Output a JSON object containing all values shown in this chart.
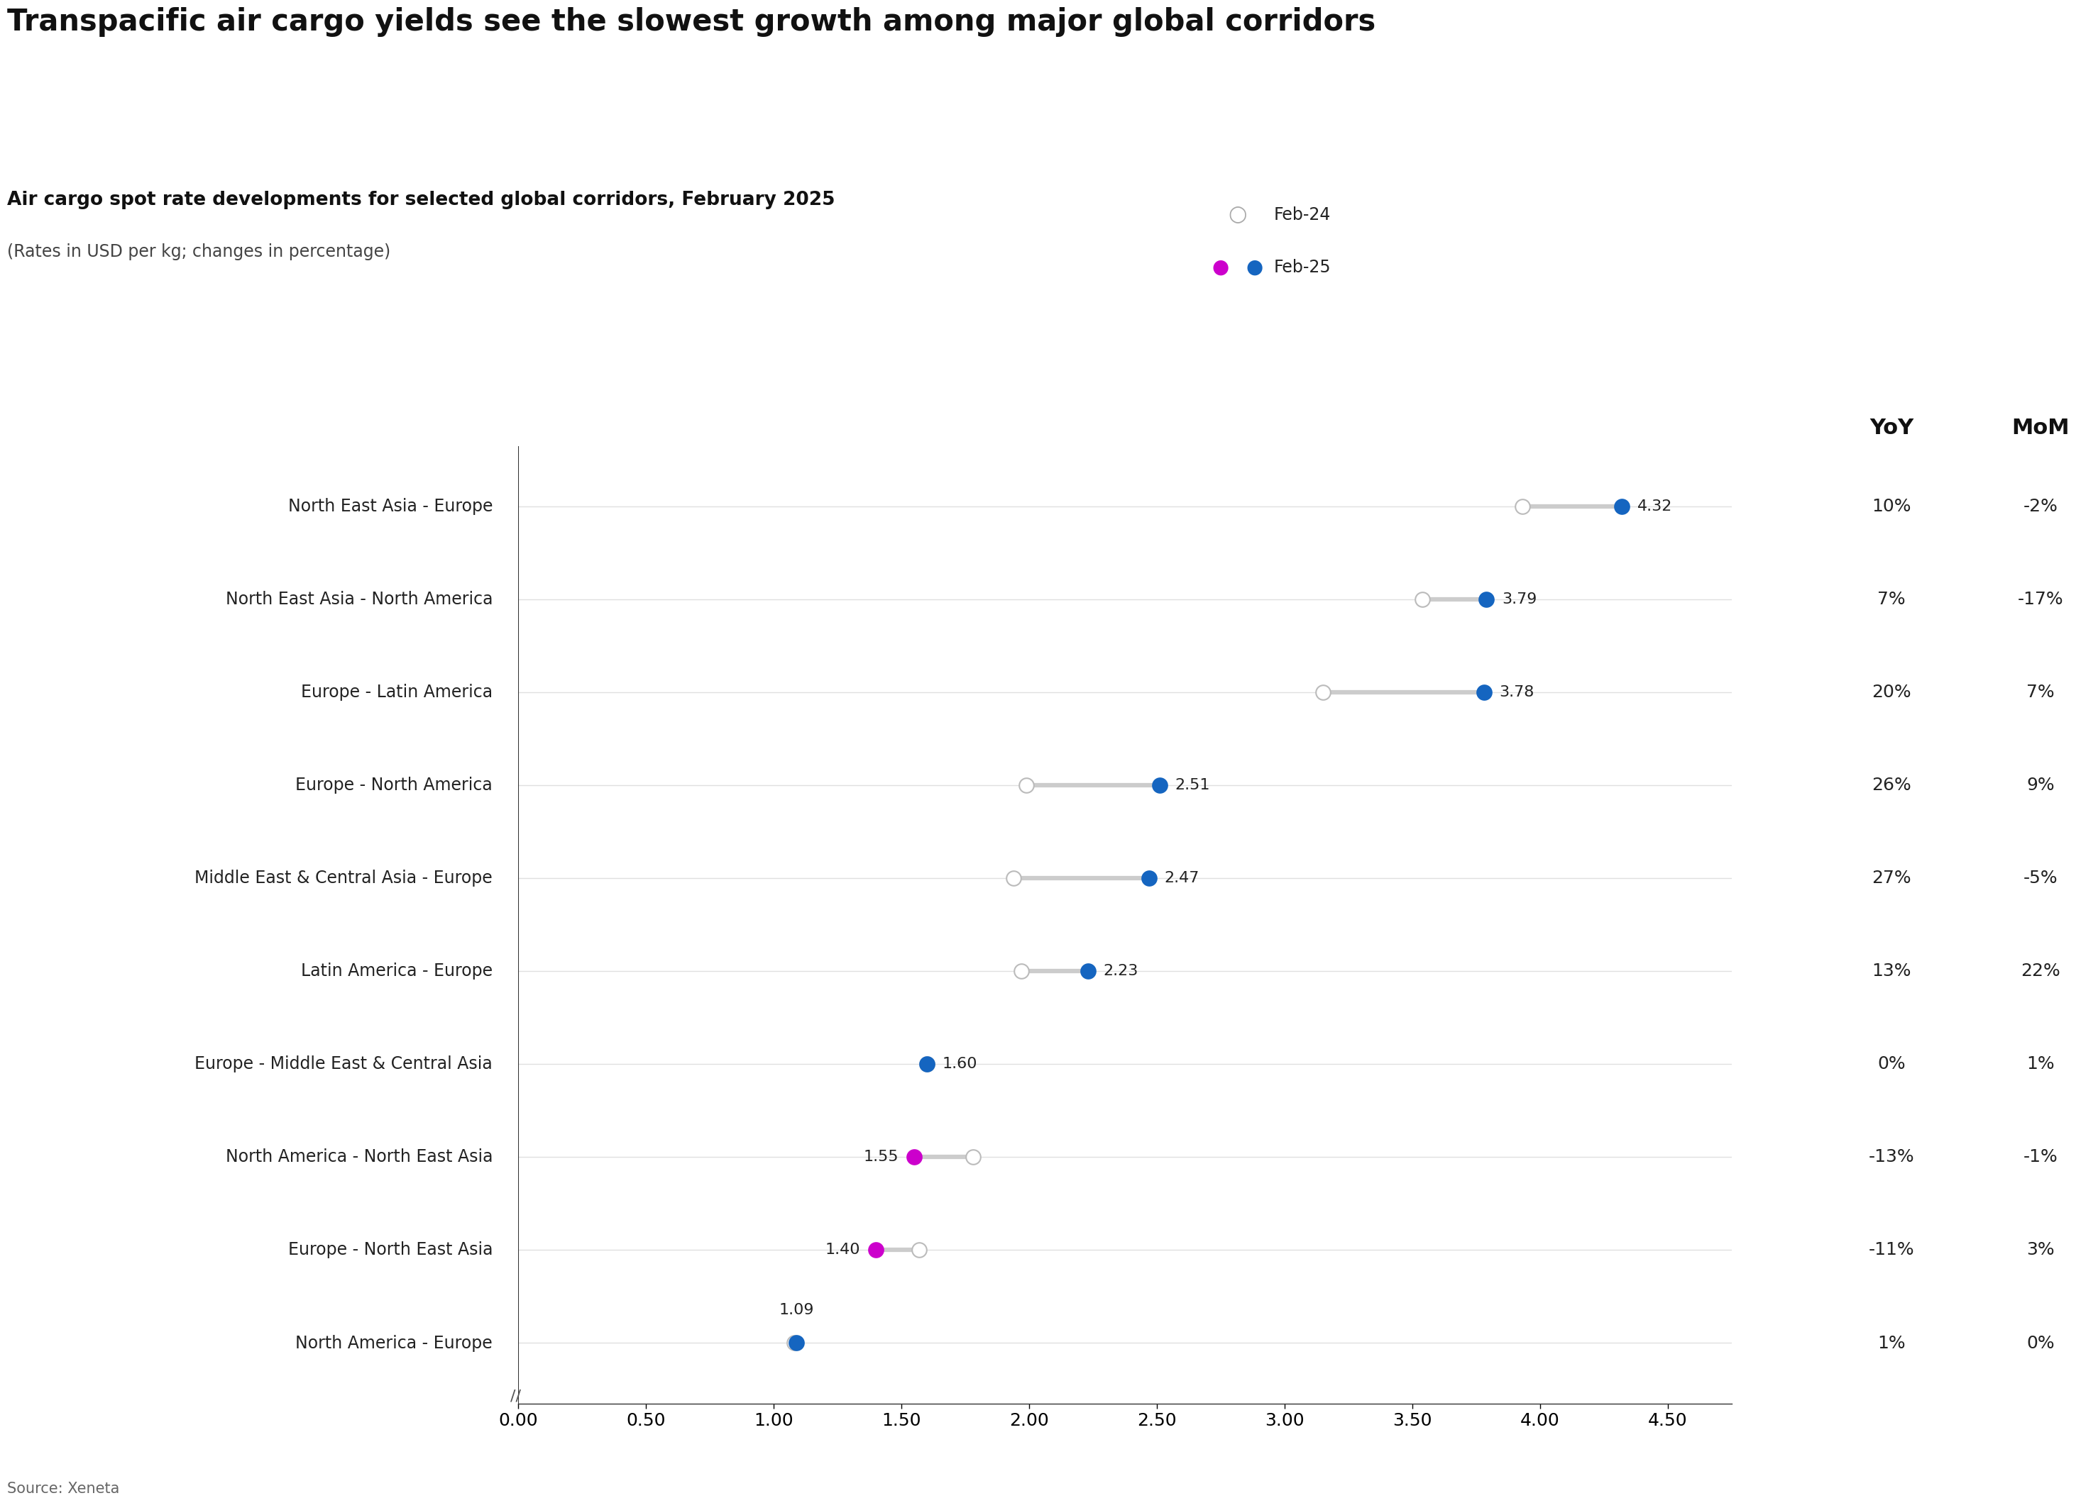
{
  "title": "Transpacific air cargo yields see the slowest growth among major global corridors",
  "subtitle": "Air cargo spot rate developments for selected global corridors, February 2025",
  "subtitle2": "(Rates in USD per kg; changes in percentage)",
  "source": "Source: Xeneta",
  "corridors": [
    "North East Asia - Europe",
    "North East Asia - North America",
    "Europe - Latin America",
    "Europe - North America",
    "Middle East & Central Asia - Europe",
    "Latin America - Europe",
    "Europe - Middle East & Central Asia",
    "North America - North East Asia",
    "Europe - North East Asia",
    "North America - Europe"
  ],
  "feb24_values": [
    3.93,
    3.54,
    3.15,
    1.99,
    1.94,
    1.97,
    1.6,
    1.78,
    1.57,
    1.08
  ],
  "feb25_values": [
    4.32,
    3.79,
    3.78,
    2.51,
    2.47,
    2.23,
    1.6,
    1.55,
    1.4,
    1.09
  ],
  "yoy": [
    "10%",
    "7%",
    "20%",
    "26%",
    "27%",
    "13%",
    "0%",
    "-13%",
    "-11%",
    "1%"
  ],
  "mom": [
    "-2%",
    "-17%",
    "7%",
    "9%",
    "-5%",
    "22%",
    "1%",
    "-1%",
    "3%",
    "0%"
  ],
  "feb25_dot_color": "#1565C0",
  "feb24_dot_color": "#FFFFFF",
  "feb24_dot_edgecolor": "#BBBBBB",
  "line_color": "#CCCCCC",
  "background_color": "#FFFFFF",
  "xticks": [
    0.0,
    0.5,
    1.0,
    1.5,
    2.0,
    2.5,
    3.0,
    3.5,
    4.0,
    4.5
  ],
  "grid_color": "#E0E0E0",
  "dot_size": 220,
  "dot_linewidth": 1.5,
  "special_magenta_rows": [
    7,
    8
  ],
  "magenta_color": "#CC00CC",
  "value_labels": [
    "4.32",
    "3.79",
    "3.78",
    "2.51",
    "2.47",
    "2.23",
    "1.60",
    "1.55",
    "1.40",
    "1.09"
  ]
}
